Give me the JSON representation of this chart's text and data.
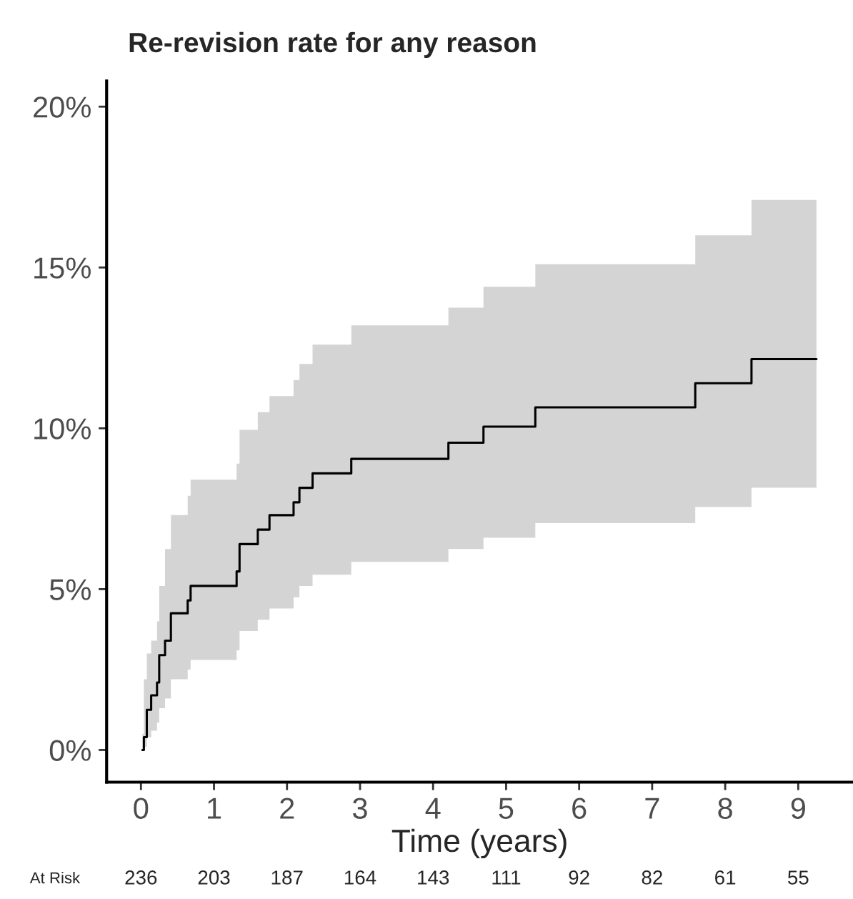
{
  "chart_data": {
    "type": "step",
    "title": "Re-revision rate for any reason",
    "xlabel": "Time (years)",
    "x": [
      0.02,
      0.04,
      0.08,
      0.14,
      0.22,
      0.25,
      0.33,
      0.41,
      0.64,
      0.68,
      1.31,
      1.35,
      1.6,
      1.76,
      2.09,
      2.17,
      2.35,
      2.88,
      4.21,
      4.69,
      5.4,
      7.59,
      8.36,
      9.25
    ],
    "series": [
      {
        "color": "#000000",
        "values": [
          0,
          0.4,
          1.25,
          1.7,
          2.1,
          2.95,
          3.4,
          4.25,
          4.65,
          5.1,
          5.55,
          6.4,
          6.85,
          7.3,
          7.7,
          8.15,
          8.6,
          9.05,
          9.55,
          10.05,
          10.65,
          11.4,
          12.15,
          12.15
        ],
        "lower": [
          0,
          0.1,
          0.4,
          0.6,
          0.85,
          1.3,
          1.6,
          2.2,
          2.5,
          2.8,
          3.1,
          3.7,
          4.05,
          4.4,
          4.75,
          5.1,
          5.45,
          5.85,
          6.25,
          6.6,
          7.05,
          7.55,
          8.15,
          8.15
        ],
        "upper": [
          0.5,
          2.2,
          3.0,
          3.4,
          4.0,
          5.1,
          6.25,
          7.3,
          7.9,
          8.4,
          8.9,
          9.95,
          10.5,
          11.0,
          11.5,
          12.0,
          12.6,
          13.2,
          13.75,
          14.4,
          15.1,
          16.0,
          17.1,
          17.1
        ]
      }
    ],
    "xlim": [
      -0.47,
      9.75
    ],
    "ylim": [
      -1,
      20.8
    ],
    "xticks": [
      0,
      1,
      2,
      3,
      4,
      5,
      6,
      7,
      8,
      9
    ],
    "yticks": [
      {
        "value": 0,
        "label": "0%"
      },
      {
        "value": 5,
        "label": "5%"
      },
      {
        "value": 10,
        "label": "10%"
      },
      {
        "value": 15,
        "label": "15%"
      },
      {
        "value": 20,
        "label": "20%"
      }
    ],
    "grid": false,
    "legend": false,
    "line_style": "solid",
    "annotations": [
      "At Risk",
      "236",
      "203",
      "187",
      "164",
      "143",
      "111",
      "92",
      "82",
      "61",
      "55"
    ]
  }
}
